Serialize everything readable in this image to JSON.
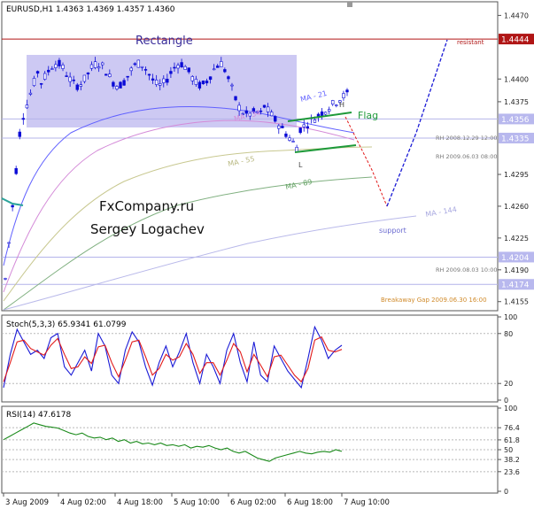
{
  "colors": {
    "background": "#ffffff",
    "candle_stroke": "#0b0bd6",
    "ma21": "#6060ff",
    "ma34": "#d48ad8",
    "ma55": "#c8c890",
    "ma89": "#80b080",
    "ma144": "#b9b9ea",
    "rectangle_fill": "#c8c3f2",
    "flag_line": "#1f9a3a",
    "forecast_red": "#e21a1a",
    "forecast_blue": "#1a1ad6",
    "resistance_line": "#b01515",
    "level_line": "#b4b4ea",
    "stoch_main": "#1a1ad6",
    "stoch_signal": "#e21a1a",
    "rsi_line": "#1a8a1a",
    "grid_dots": "#b8b8b8"
  },
  "chart_data": [
    {
      "type": "candlestick",
      "header": "EURUSD,H1  1.4363 1.4369 1.4357 1.4360",
      "x_tick_labels": [
        "3 Aug 2009",
        "4 Aug 02:00",
        "4 Aug 18:00",
        "5 Aug 10:00",
        "6 Aug 02:00",
        "6 Aug 18:00",
        "7 Aug 10:00"
      ],
      "y_tick_labels": [
        "1.4470",
        "1.4444",
        "1.4400",
        "1.4375",
        "1.4356",
        "1.4335",
        "1.4295",
        "1.4260",
        "1.4225",
        "1.4204",
        "1.4190",
        "1.4174",
        "1.4155"
      ],
      "ylim": [
        1.4145,
        1.4485
      ],
      "highlighted_levels": [
        {
          "label": "1.4444",
          "value": 1.4444,
          "kind": "resistance"
        },
        {
          "label": "1.4356",
          "value": 1.4356,
          "kind": "level"
        },
        {
          "label": "1.4335",
          "value": 1.4335,
          "kind": "level"
        },
        {
          "label": "1.4204",
          "value": 1.4204,
          "kind": "level"
        },
        {
          "label": "1.4174",
          "value": 1.4174,
          "kind": "level"
        }
      ],
      "annotations": {
        "rectangle": "Rectangle",
        "flag": "Flag",
        "h": "H",
        "l": "L",
        "ma21": "MA - 21",
        "ma34": "MA - 34",
        "ma55": "MA - 55",
        "ma89": "MA - 89",
        "ma144": "MA - 144",
        "resistant": "resistant",
        "support": "support",
        "rh1": "RH  2008.12.29 12:00",
        "rh2": "RH  2009.06.03 08:00",
        "rh3": "RH  2009.08.03 10:00",
        "breakaway": "Breakaway Gap 2009.06.30 16:00",
        "fx": "FxCompany.ru",
        "author": "Sergey Logachev"
      },
      "grid": false
    },
    {
      "type": "line",
      "header": "Stoch(5,3,3) 65.9341 61.0799",
      "y_tick_labels": [
        "100",
        "80",
        "20",
        "0"
      ],
      "ylim": [
        0,
        100
      ],
      "levels": [
        80,
        20
      ],
      "series": [
        {
          "values": [
            15,
            55,
            85,
            70,
            55,
            60,
            50,
            75,
            80,
            40,
            30,
            45,
            60,
            35,
            80,
            65,
            30,
            20,
            60,
            82,
            70,
            40,
            18,
            45,
            65,
            40,
            58,
            80,
            45,
            20,
            55,
            40,
            20,
            60,
            80,
            45,
            22,
            70,
            30,
            22,
            65,
            50,
            35,
            25,
            15,
            50,
            88,
            72,
            50,
            60,
            66
          ]
        },
        {
          "values": [
            22,
            45,
            70,
            72,
            62,
            58,
            54,
            66,
            74,
            55,
            38,
            40,
            52,
            44,
            64,
            66,
            45,
            28,
            48,
            70,
            72,
            52,
            30,
            38,
            55,
            48,
            52,
            68,
            55,
            32,
            45,
            45,
            30,
            48,
            68,
            58,
            34,
            55,
            42,
            28,
            52,
            54,
            42,
            30,
            22,
            38,
            72,
            76,
            60,
            58,
            61
          ]
        }
      ]
    },
    {
      "type": "line",
      "header": "RSI(14) 47.6178",
      "y_tick_labels": [
        "100",
        "76.4",
        "61.8",
        "50",
        "38.2",
        "23.6",
        "0"
      ],
      "ylim": [
        0,
        100
      ],
      "levels": [
        76.4,
        61.8,
        50,
        38.2,
        23.6
      ],
      "series": [
        {
          "values": [
            62,
            66,
            70,
            74,
            78,
            82,
            80,
            78,
            77,
            76,
            73,
            70,
            68,
            70,
            66,
            64,
            65,
            62,
            64,
            60,
            62,
            58,
            60,
            57,
            58,
            56,
            58,
            55,
            56,
            54,
            56,
            52,
            54,
            53,
            55,
            52,
            50,
            52,
            48,
            46,
            48,
            44,
            40,
            38,
            36,
            40,
            42,
            44,
            46,
            48,
            46,
            45,
            47,
            48,
            47,
            50,
            48
          ]
        }
      ]
    }
  ]
}
